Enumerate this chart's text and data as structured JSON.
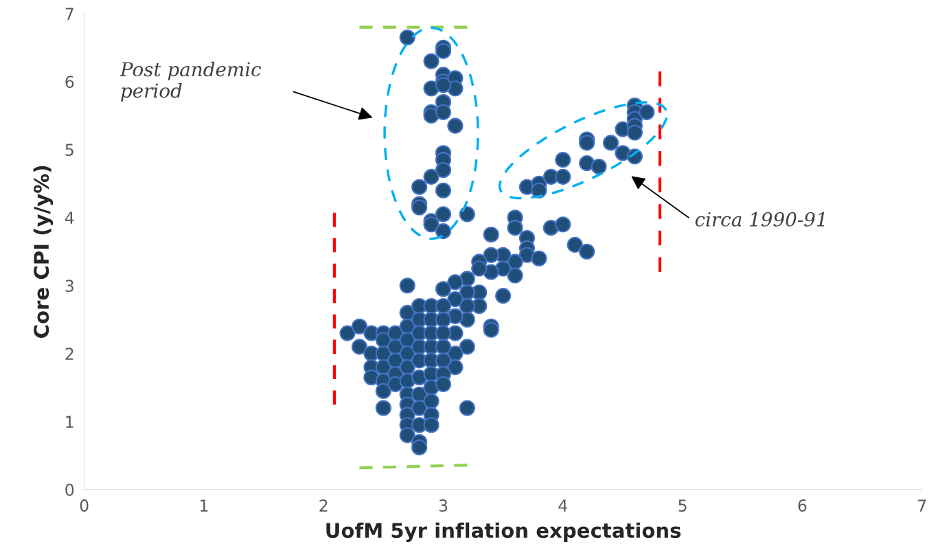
{
  "chart_data": {
    "type": "scatter",
    "xlabel": "UofM 5yr inflation expectations",
    "ylabel": "Core CPI (y/y%)",
    "xlim": [
      0,
      7
    ],
    "ylim": [
      0,
      7
    ],
    "xticks": [
      0,
      1,
      2,
      3,
      4,
      5,
      6,
      7
    ],
    "yticks": [
      0,
      1,
      2,
      3,
      4,
      5,
      6,
      7
    ],
    "grid": false,
    "legend": false,
    "marker": "circle",
    "series": [
      {
        "color": "#1f4e79",
        "x": [
          2.7,
          2.9,
          3.0,
          3.0,
          2.9,
          3.0,
          3.0,
          3.1,
          3.1,
          3.0,
          2.9,
          2.9,
          3.0,
          3.0,
          3.1,
          3.0,
          3.0,
          3.0,
          2.9,
          2.8,
          3.0,
          2.8,
          2.8,
          2.9,
          2.9,
          3.0,
          3.0,
          3.2,
          3.7,
          3.8,
          3.8,
          3.9,
          4.0,
          4.0,
          4.2,
          4.2,
          4.2,
          4.3,
          4.4,
          4.5,
          4.5,
          4.6,
          4.6,
          4.6,
          4.6,
          4.6,
          4.6,
          4.7,
          3.6,
          3.6,
          3.7,
          3.7,
          3.7,
          3.8,
          3.9,
          4.0,
          4.1,
          4.2,
          3.6,
          3.6,
          3.5,
          3.5,
          3.5,
          3.4,
          3.4,
          3.4,
          3.4,
          3.4,
          3.3,
          3.3,
          3.3,
          3.3,
          3.2,
          3.2,
          3.2,
          3.2,
          3.2,
          3.2,
          3.1,
          3.1,
          3.1,
          3.1,
          3.1,
          3.1,
          2.2,
          2.3,
          2.3,
          2.4,
          2.4,
          2.4,
          2.4,
          2.5,
          2.5,
          2.5,
          2.5,
          2.5,
          2.5,
          2.5,
          2.6,
          2.6,
          2.6,
          2.6,
          2.6,
          2.7,
          2.7,
          2.7,
          2.7,
          2.7,
          2.7,
          2.7,
          2.7,
          2.7,
          2.7,
          2.7,
          2.7,
          2.8,
          2.8,
          2.8,
          2.8,
          2.8,
          2.8,
          2.8,
          2.8,
          2.8,
          2.8,
          2.8,
          2.9,
          2.9,
          2.9,
          2.9,
          2.9,
          2.9,
          2.9,
          2.9,
          2.9,
          2.9,
          3.0,
          3.0,
          3.0,
          3.0,
          3.0,
          3.0,
          3.0,
          3.0
        ],
        "values": [
          6.65,
          6.3,
          6.5,
          6.45,
          5.9,
          6.1,
          6.0,
          6.05,
          5.9,
          5.95,
          5.55,
          5.5,
          5.7,
          5.55,
          5.35,
          4.95,
          4.85,
          4.7,
          4.6,
          4.45,
          4.4,
          4.2,
          4.15,
          3.95,
          3.9,
          4.05,
          3.8,
          4.05,
          4.45,
          4.5,
          4.4,
          4.6,
          4.85,
          4.6,
          5.15,
          5.1,
          4.8,
          4.75,
          5.1,
          5.3,
          4.95,
          5.65,
          5.55,
          5.45,
          5.35,
          5.25,
          4.9,
          5.55,
          4.0,
          3.85,
          3.7,
          3.55,
          3.45,
          3.4,
          3.85,
          3.9,
          3.6,
          3.5,
          3.35,
          3.15,
          3.45,
          3.25,
          2.85,
          3.75,
          3.45,
          3.2,
          2.4,
          2.35,
          3.35,
          3.25,
          2.9,
          2.7,
          3.1,
          2.9,
          2.7,
          2.5,
          2.1,
          1.2,
          3.05,
          2.8,
          2.55,
          2.3,
          2.0,
          1.8,
          2.3,
          2.4,
          2.1,
          2.3,
          2.0,
          1.8,
          1.65,
          2.3,
          2.2,
          2.0,
          1.8,
          1.6,
          1.45,
          1.2,
          2.3,
          2.1,
          1.9,
          1.7,
          1.55,
          3.0,
          2.6,
          2.4,
          2.2,
          2.0,
          1.8,
          1.6,
          1.4,
          1.25,
          1.1,
          0.95,
          0.8,
          2.7,
          2.5,
          2.3,
          2.1,
          1.9,
          1.65,
          1.4,
          1.2,
          0.95,
          0.7,
          0.62,
          2.7,
          2.5,
          2.3,
          2.1,
          1.9,
          1.7,
          1.5,
          1.3,
          1.1,
          0.95,
          2.95,
          2.7,
          2.5,
          2.3,
          2.1,
          1.9,
          1.7,
          1.55
        ]
      },
      {
        "type": "line",
        "color": "#92d050",
        "line_style": "dashed",
        "marker": "none",
        "x": [
          2.3,
          3.2
        ],
        "values": [
          6.8,
          6.8
        ]
      },
      {
        "type": "line",
        "color": "#92d050",
        "line_style": "dashed",
        "marker": "none",
        "x": [
          2.3,
          3.2
        ],
        "values": [
          0.32,
          0.36
        ]
      },
      {
        "type": "line",
        "color": "#ff0000",
        "line_style": "dashed",
        "marker": "none",
        "x": [
          2.09,
          2.09
        ],
        "values": [
          1.25,
          4.07
        ]
      },
      {
        "type": "line",
        "color": "#ff0000",
        "line_style": "dashed",
        "marker": "none",
        "x": [
          4.81,
          4.81
        ],
        "values": [
          3.2,
          6.15
        ]
      }
    ],
    "annotations": [
      "Post pandemic\nperiod",
      "circa 1990-91"
    ]
  }
}
